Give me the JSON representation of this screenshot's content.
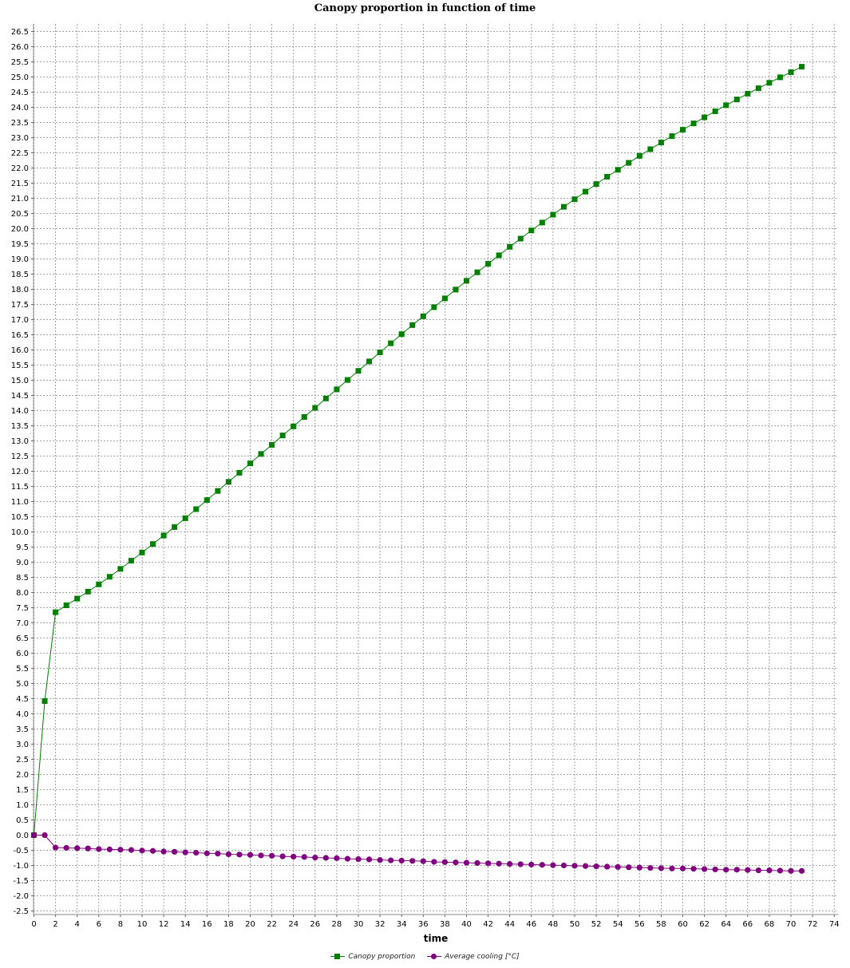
{
  "chart_data": {
    "type": "line",
    "title": "Canopy proportion in function of time",
    "xlabel": "time",
    "ylabel": "",
    "xlim": [
      0,
      74
    ],
    "ylim": [
      -2.5,
      26.5
    ],
    "x_ticks": [
      0,
      2,
      4,
      6,
      8,
      10,
      12,
      14,
      16,
      18,
      20,
      22,
      24,
      26,
      28,
      30,
      32,
      34,
      36,
      38,
      40,
      42,
      44,
      46,
      48,
      50,
      52,
      54,
      56,
      58,
      60,
      62,
      64,
      66,
      68,
      70,
      72,
      74
    ],
    "y_ticks": [
      "-2.5",
      "-2.0",
      "-1.5",
      "-1.0",
      "-0.5",
      "0.0",
      "0.5",
      "1.0",
      "1.5",
      "2.0",
      "2.5",
      "3.0",
      "3.5",
      "4.0",
      "4.5",
      "5.0",
      "5.5",
      "6.0",
      "6.5",
      "7.0",
      "7.5",
      "8.0",
      "8.5",
      "9.0",
      "9.5",
      "10.0",
      "10.5",
      "11.0",
      "11.5",
      "12.0",
      "12.5",
      "13.0",
      "13.5",
      "14.0",
      "14.5",
      "15.0",
      "15.5",
      "16.0",
      "16.5",
      "17.0",
      "17.5",
      "18.0",
      "18.5",
      "19.0",
      "19.5",
      "20.0",
      "20.5",
      "21.0",
      "21.5",
      "22.0",
      "22.5",
      "23.0",
      "23.5",
      "24.0",
      "24.5",
      "25.0",
      "25.5",
      "26.0",
      "26.5"
    ],
    "grid": true,
    "legend_position": "bottom",
    "series": [
      {
        "name": "Canopy proportion",
        "color": "#008000",
        "marker": "square",
        "x": [
          0,
          1,
          2,
          3,
          4,
          5,
          6,
          7,
          8,
          9,
          10,
          11,
          12,
          13,
          14,
          15,
          16,
          17,
          18,
          19,
          20,
          21,
          22,
          23,
          24,
          25,
          26,
          27,
          28,
          29,
          30,
          31,
          32,
          33,
          34,
          35,
          36,
          37,
          38,
          39,
          40,
          41,
          42,
          43,
          44,
          45,
          46,
          47,
          48,
          49,
          50,
          51,
          52,
          53,
          54,
          55,
          56,
          57,
          58,
          59,
          60,
          61,
          62,
          63,
          64,
          65,
          66,
          67,
          68,
          69,
          70,
          71
        ],
        "values": [
          0.0,
          4.42,
          7.35,
          7.58,
          7.8,
          8.03,
          8.27,
          8.52,
          8.78,
          9.05,
          9.32,
          9.6,
          9.88,
          10.16,
          10.45,
          10.75,
          11.05,
          11.35,
          11.65,
          11.95,
          12.26,
          12.57,
          12.87,
          13.18,
          13.48,
          13.79,
          14.09,
          14.4,
          14.7,
          15.01,
          15.31,
          15.62,
          15.92,
          16.22,
          16.52,
          16.82,
          17.11,
          17.41,
          17.7,
          17.99,
          18.28,
          18.56,
          18.84,
          19.12,
          19.4,
          19.67,
          19.94,
          20.2,
          20.46,
          20.72,
          20.97,
          21.22,
          21.47,
          21.71,
          21.94,
          22.17,
          22.4,
          22.62,
          22.84,
          23.05,
          23.26,
          23.47,
          23.67,
          23.87,
          24.07,
          24.26,
          24.45,
          24.63,
          24.81,
          24.99,
          25.16,
          25.34
        ]
      },
      {
        "name": "Average cooling [°C]",
        "color": "#800080",
        "marker": "circle",
        "x": [
          0,
          1,
          2,
          3,
          4,
          5,
          6,
          7,
          8,
          9,
          10,
          11,
          12,
          13,
          14,
          15,
          16,
          17,
          18,
          19,
          20,
          21,
          22,
          23,
          24,
          25,
          26,
          27,
          28,
          29,
          30,
          31,
          32,
          33,
          34,
          35,
          36,
          37,
          38,
          39,
          40,
          41,
          42,
          43,
          44,
          45,
          46,
          47,
          48,
          49,
          50,
          51,
          52,
          53,
          54,
          55,
          56,
          57,
          58,
          59,
          60,
          61,
          62,
          63,
          64,
          65,
          66,
          67,
          68,
          69,
          70,
          71
        ],
        "values": [
          0.0,
          0.0,
          -0.41,
          -0.42,
          -0.43,
          -0.44,
          -0.46,
          -0.47,
          -0.48,
          -0.49,
          -0.51,
          -0.52,
          -0.54,
          -0.55,
          -0.57,
          -0.58,
          -0.6,
          -0.61,
          -0.63,
          -0.64,
          -0.65,
          -0.67,
          -0.68,
          -0.7,
          -0.71,
          -0.72,
          -0.74,
          -0.75,
          -0.76,
          -0.78,
          -0.79,
          -0.8,
          -0.82,
          -0.83,
          -0.84,
          -0.85,
          -0.86,
          -0.88,
          -0.89,
          -0.9,
          -0.91,
          -0.92,
          -0.93,
          -0.94,
          -0.95,
          -0.96,
          -0.97,
          -0.98,
          -0.99,
          -1.0,
          -1.01,
          -1.02,
          -1.03,
          -1.04,
          -1.05,
          -1.06,
          -1.07,
          -1.08,
          -1.09,
          -1.1,
          -1.1,
          -1.11,
          -1.12,
          -1.13,
          -1.14,
          -1.14,
          -1.15,
          -1.16,
          -1.16,
          -1.17,
          -1.18,
          -1.18
        ]
      }
    ]
  }
}
